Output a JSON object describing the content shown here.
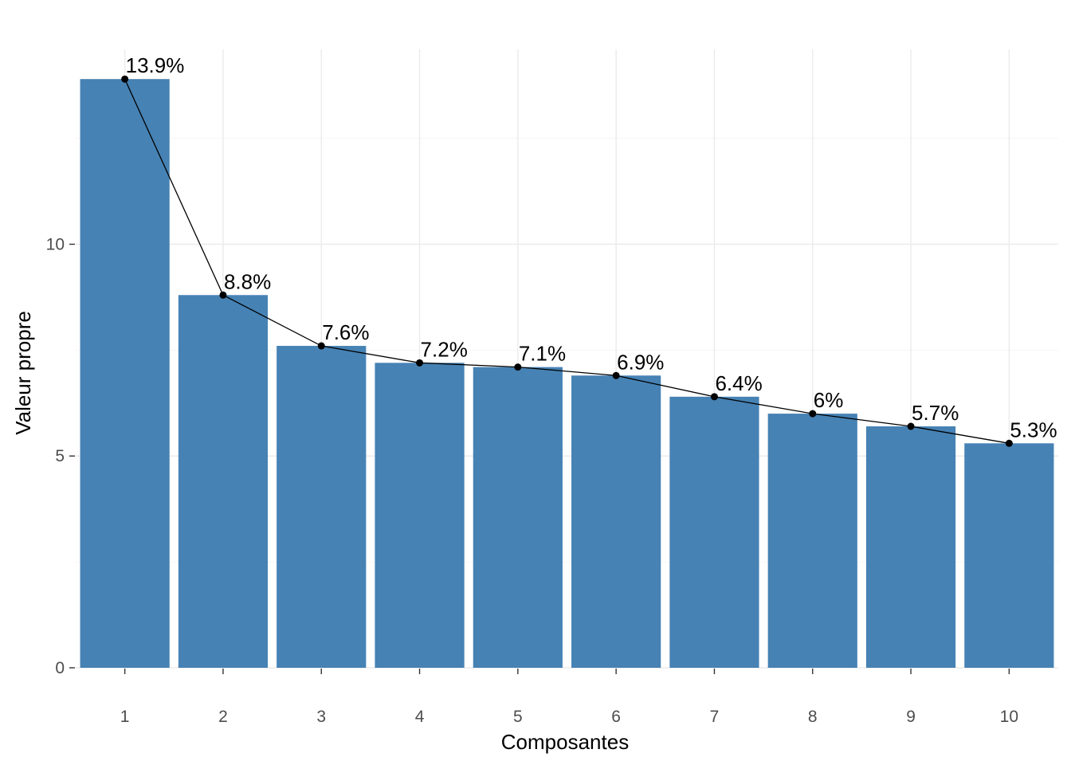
{
  "chart_data": {
    "type": "bar",
    "title": "",
    "xlabel": "Composantes",
    "ylabel": "Valeur propre",
    "categories": [
      "1",
      "2",
      "3",
      "4",
      "5",
      "6",
      "7",
      "8",
      "9",
      "10"
    ],
    "values": [
      13.9,
      8.8,
      7.6,
      7.2,
      7.1,
      6.9,
      6.4,
      6.0,
      5.7,
      5.3
    ],
    "value_labels": [
      "13.9%",
      "8.8%",
      "7.6%",
      "7.2%",
      "7.1%",
      "6.9%",
      "6.4%",
      "6%",
      "5.7%",
      "5.3%"
    ],
    "line_overlay": true,
    "ylim": [
      0,
      14.6
    ],
    "y_ticks": [
      0,
      5,
      10
    ],
    "y_tick_labels": [
      "0",
      "5",
      "10"
    ],
    "grid": true,
    "legend": "none",
    "colors": {
      "bar": "#4682b4",
      "line": "#000000"
    }
  }
}
